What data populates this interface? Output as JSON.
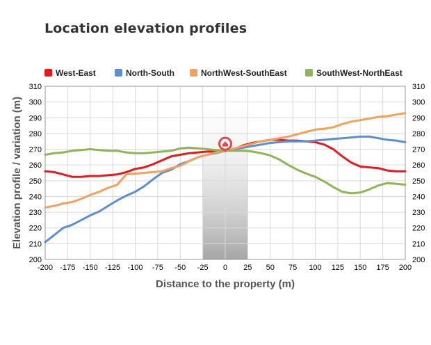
{
  "title": "Location elevation profiles",
  "chart_data": {
    "type": "line",
    "title": "Location elevation profiles",
    "xlabel": "Distance to the property (m)",
    "ylabel": "Elevation profile / variation (m)",
    "xlim": [
      -200,
      200
    ],
    "ylim": [
      200,
      310
    ],
    "x_ticks": [
      "-200",
      "-175",
      "-150",
      "-125",
      "-100",
      "-75",
      "-50",
      "-25",
      "0",
      "25",
      "50",
      "75",
      "100",
      "125",
      "150",
      "175",
      "200"
    ],
    "y_ticks": [
      "200",
      "210",
      "220",
      "230",
      "240",
      "250",
      "260",
      "270",
      "280",
      "290",
      "300",
      "310"
    ],
    "grid": true,
    "legend_position": "top",
    "highlight_band": [
      -25,
      25
    ],
    "property_marker": {
      "x": 0,
      "y": 269.5,
      "icon": "home-icon",
      "color": "#e8464d"
    },
    "x": [
      -200,
      -190,
      -180,
      -170,
      -160,
      -150,
      -140,
      -130,
      -120,
      -110,
      -100,
      -90,
      -80,
      -70,
      -60,
      -50,
      -40,
      -30,
      -20,
      -10,
      0,
      10,
      20,
      30,
      40,
      50,
      60,
      70,
      80,
      90,
      100,
      110,
      120,
      130,
      140,
      150,
      160,
      170,
      180,
      190,
      200
    ],
    "series": [
      {
        "name": "West-East",
        "color": "#e8181c",
        "values": [
          256,
          255.5,
          254,
          252.5,
          252.5,
          253,
          253,
          253.5,
          254,
          255.5,
          257.5,
          258.5,
          260.5,
          263,
          265.5,
          266.5,
          267.5,
          268,
          268.5,
          268.5,
          269,
          270,
          272.5,
          274,
          275,
          276,
          276,
          275.5,
          275.5,
          275,
          274.5,
          273,
          270,
          265.5,
          261.5,
          259,
          258.5,
          258,
          256.5,
          256,
          256
        ]
      },
      {
        "name": "North-South",
        "color": "#5b8ed6",
        "values": [
          211,
          215.5,
          220,
          222,
          225,
          228,
          230.5,
          234,
          237.5,
          240.5,
          243,
          246.5,
          251,
          255,
          257,
          260.5,
          262.5,
          265,
          266.5,
          267.5,
          269,
          270,
          271,
          272,
          273,
          274,
          274.5,
          275,
          275,
          275,
          275.5,
          276,
          276.5,
          277,
          277.5,
          278,
          278,
          277,
          276,
          275.5,
          274.5
        ]
      },
      {
        "name": "NorthWest-SouthEast",
        "color": "#f4a15b",
        "values": [
          233,
          234,
          235.5,
          236.5,
          238.5,
          241,
          243,
          245.5,
          247.5,
          254,
          254.5,
          255,
          255.5,
          256,
          258,
          259.5,
          262.5,
          265,
          266.5,
          268,
          269,
          270.5,
          272,
          273.5,
          275,
          276,
          277,
          278,
          279.5,
          281,
          282.5,
          283,
          284,
          286,
          287.5,
          288.5,
          289.5,
          290.5,
          291,
          292,
          293
        ]
      },
      {
        "name": "SouthWest-NorthEast",
        "color": "#8db654",
        "values": [
          266.5,
          267.5,
          268,
          269,
          269.5,
          270,
          269.5,
          269,
          269,
          268,
          267.5,
          267.5,
          268,
          268.5,
          269,
          270.5,
          271,
          270.5,
          270,
          269.5,
          269,
          269,
          269,
          268.5,
          267.5,
          266,
          263.5,
          260,
          257,
          254.5,
          252.5,
          249.5,
          246,
          243,
          242,
          242.5,
          244.5,
          247,
          248.5,
          248,
          247.5
        ]
      }
    ]
  }
}
